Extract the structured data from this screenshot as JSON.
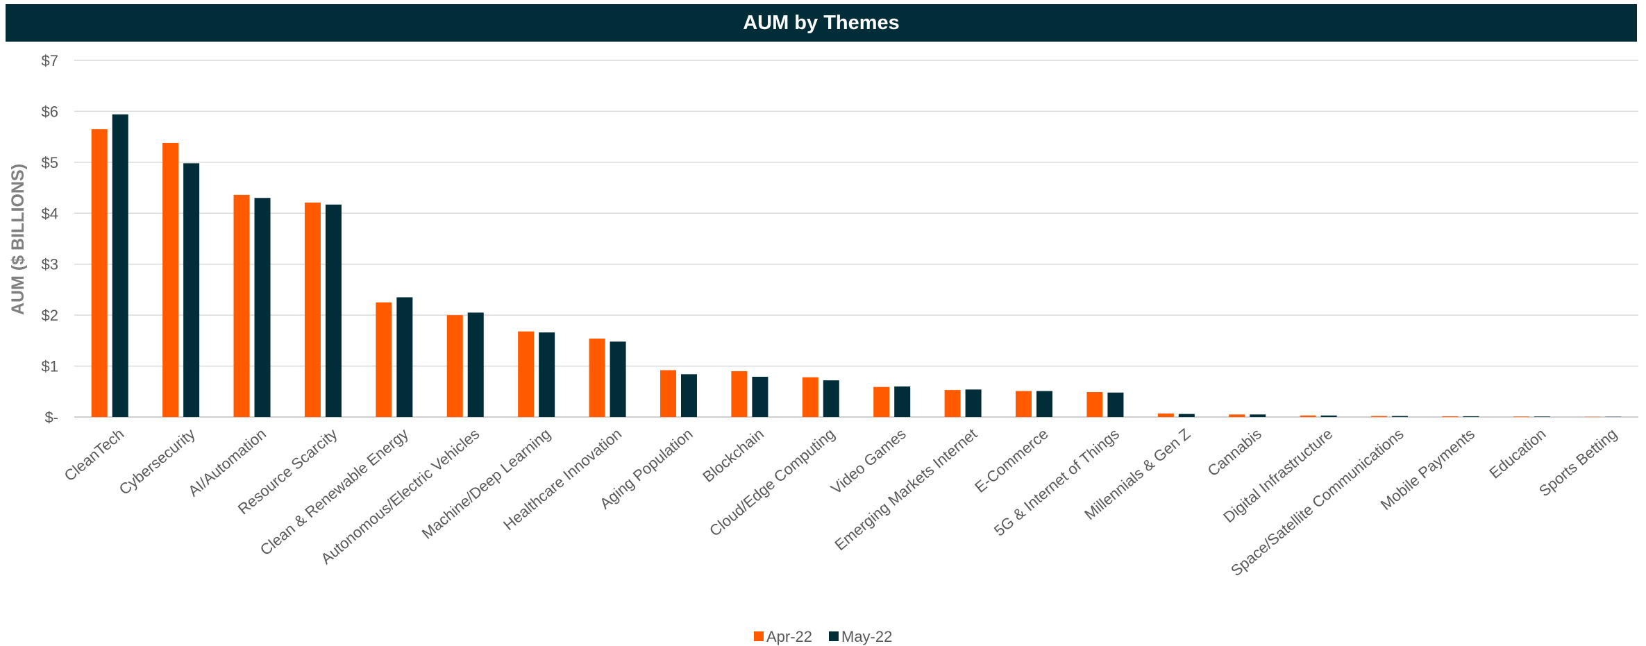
{
  "chart_data": {
    "type": "bar",
    "title": "AUM by Themes",
    "ylabel": "AUM ($ BILLIONS)",
    "xlabel": "",
    "ylim": [
      0,
      7
    ],
    "yticks": [
      0,
      1,
      2,
      3,
      4,
      5,
      6,
      7
    ],
    "ytick_labels": [
      "$-",
      "$1",
      "$2",
      "$3",
      "$4",
      "$5",
      "$6",
      "$7"
    ],
    "grid": true,
    "legend_position": "bottom",
    "categories": [
      "CleanTech",
      "Cybersecurity",
      "AI/Automation",
      "Resource Scarcity",
      "Clean & Renewable Energy",
      "Autonomous/Electric Vehicles",
      "Machine/Deep Learning",
      "Healthcare Innovation",
      "Aging Population",
      "Blockchain",
      "Cloud/Edge Computing",
      "Video Games",
      "Emerging Markets Internet",
      "E-Commerce",
      "5G & Internet of Things",
      "Millennials & Gen Z",
      "Cannabis",
      "Digital Infrastructure",
      "Space/Satellite Communications",
      "Mobile Payments",
      "Education",
      "Sports Betting"
    ],
    "series": [
      {
        "name": "Apr-22",
        "color": "#ff5a00",
        "values": [
          5.65,
          5.38,
          4.36,
          4.21,
          2.25,
          2.0,
          1.68,
          1.54,
          0.92,
          0.9,
          0.78,
          0.59,
          0.53,
          0.51,
          0.49,
          0.07,
          0.05,
          0.03,
          0.02,
          0.015,
          0.01,
          0.005
        ]
      },
      {
        "name": "May-22",
        "color": "#002d38",
        "values": [
          5.94,
          4.98,
          4.3,
          4.17,
          2.35,
          2.05,
          1.66,
          1.48,
          0.84,
          0.79,
          0.72,
          0.6,
          0.54,
          0.51,
          0.48,
          0.06,
          0.05,
          0.03,
          0.02,
          0.015,
          0.01,
          0.005
        ]
      }
    ]
  }
}
